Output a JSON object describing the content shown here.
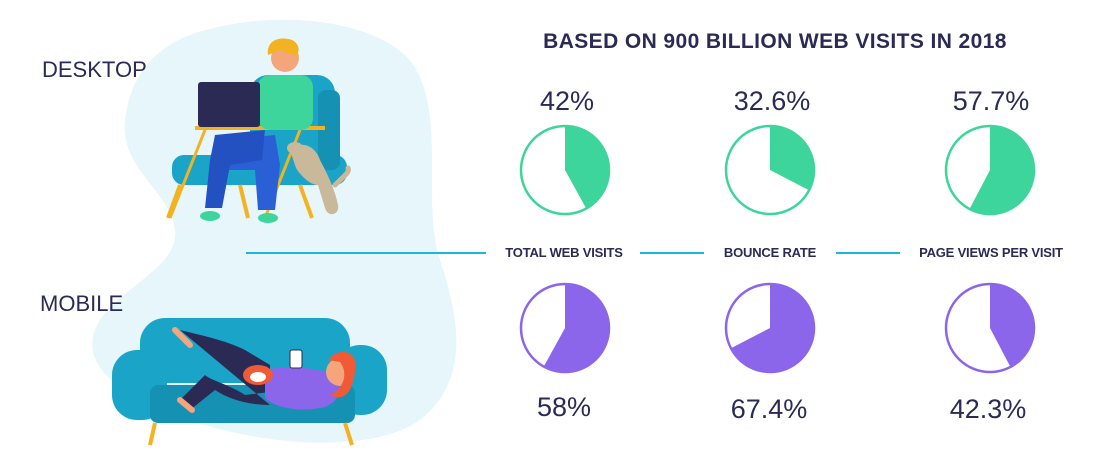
{
  "title": "BASED ON 900 BILLION WEB VISITS IN 2018",
  "labels": {
    "desktop": "DESKTOP",
    "mobile": "MOBILE"
  },
  "colors": {
    "desktop": "#3dd59c",
    "mobile": "#8b66ea",
    "connector": "#1bb6d8",
    "text": "#2b2a55",
    "blob": "#e6f6fb"
  },
  "chart_data": {
    "type": "pie",
    "title": "BASED ON 900 BILLION WEB VISITS IN 2018",
    "categories": [
      "TOTAL WEB VISITS",
      "BOUNCE RATE",
      "PAGE VIEWS PER VISIT"
    ],
    "series": [
      {
        "name": "DESKTOP",
        "values": [
          42,
          32.6,
          57.7
        ],
        "value_labels": [
          "42%",
          "32.6%",
          "57.7%"
        ]
      },
      {
        "name": "MOBILE",
        "values": [
          58,
          67.4,
          42.3
        ],
        "value_labels": [
          "58%",
          "67.4%",
          "42.3%"
        ]
      }
    ]
  }
}
